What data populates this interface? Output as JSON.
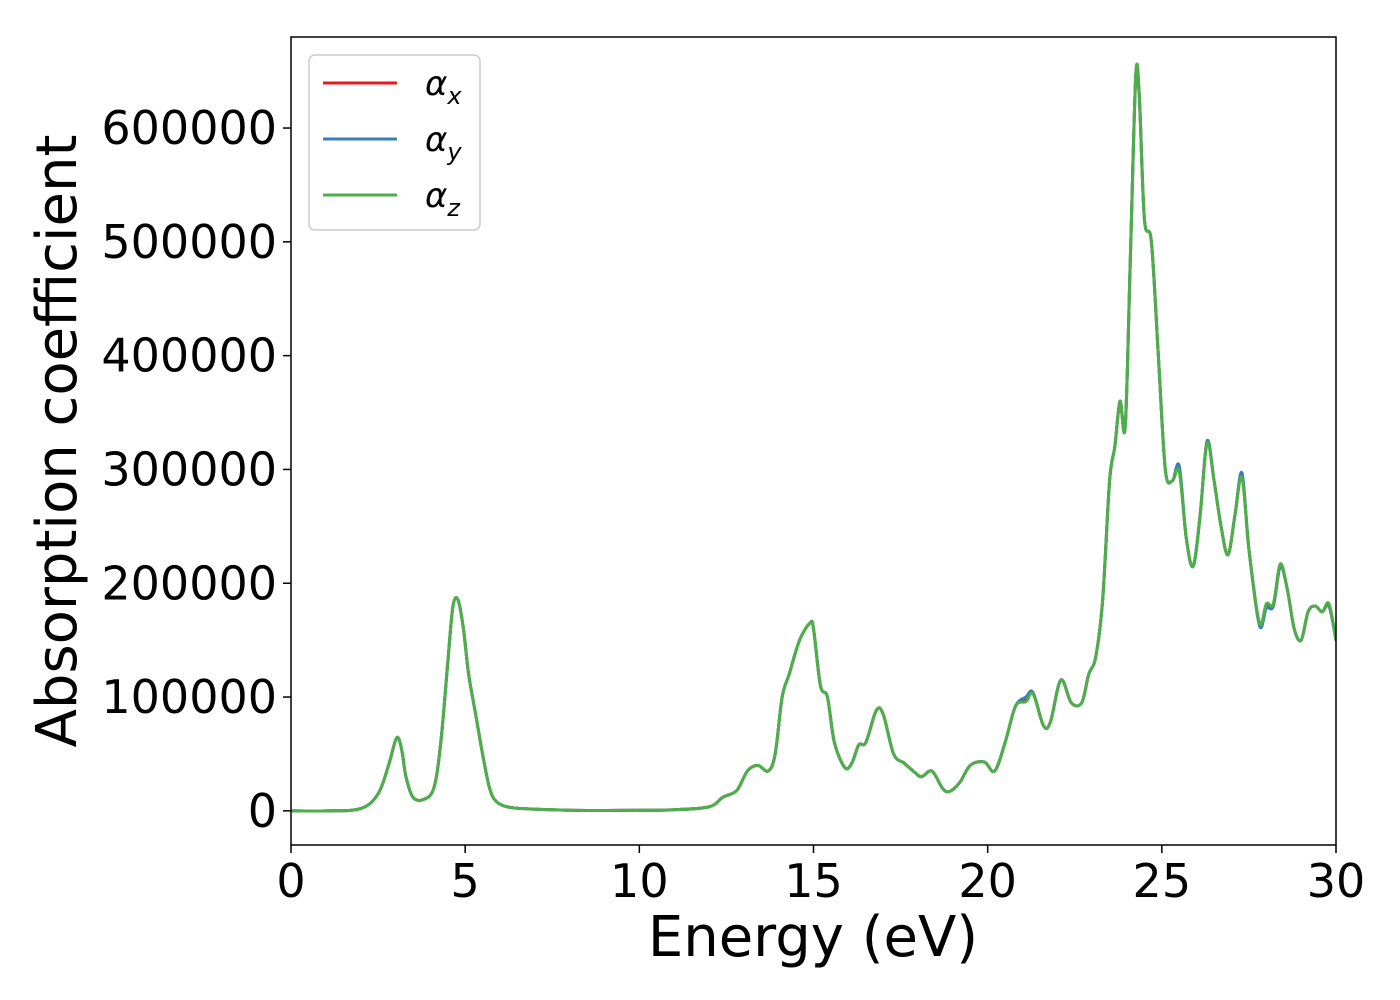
{
  "chart_data": {
    "type": "line",
    "title": "",
    "xlabel": "Energy (eV)",
    "ylabel": "Absorption coefficient",
    "xlim": [
      0,
      30
    ],
    "ylim": [
      -30000,
      680000
    ],
    "xticks": [
      0,
      5,
      10,
      15,
      20,
      25,
      30
    ],
    "xtick_labels": [
      "0",
      "5",
      "10",
      "15",
      "20",
      "25",
      "30"
    ],
    "yticks": [
      0,
      100000,
      200000,
      300000,
      400000,
      500000,
      600000
    ],
    "ytick_labels": [
      "0",
      "100000",
      "200000",
      "300000",
      "400000",
      "500000",
      "600000"
    ],
    "grid": false,
    "legend_position": "top-left",
    "series": [
      {
        "name": "α",
        "sub": "x",
        "color": "#e41a1c",
        "x": [
          0,
          1,
          2,
          2.5,
          2.8,
          3.0,
          3.1,
          3.2,
          3.3,
          3.5,
          3.8,
          4.1,
          4.3,
          4.5,
          4.65,
          4.8,
          4.95,
          5.1,
          5.3,
          5.5,
          5.7,
          5.9,
          6.3,
          7,
          8,
          9,
          10,
          11,
          12,
          12.4,
          12.8,
          13.1,
          13.4,
          13.7,
          13.9,
          14.1,
          14.3,
          14.6,
          14.9,
          15.0,
          15.2,
          15.4,
          15.6,
          15.9,
          16.1,
          16.3,
          16.5,
          16.8,
          17.0,
          17.3,
          17.6,
          17.9,
          18.1,
          18.4,
          18.7,
          18.9,
          19.2,
          19.5,
          19.9,
          20.2,
          20.5,
          20.8,
          21.1,
          21.3,
          21.6,
          21.8,
          22.1,
          22.4,
          22.7,
          22.9,
          23.1,
          23.3,
          23.5,
          23.65,
          23.8,
          23.95,
          24.1,
          24.25,
          24.35,
          24.5,
          24.7,
          24.9,
          25.1,
          25.3,
          25.5,
          25.7,
          25.9,
          26.1,
          26.3,
          26.5,
          26.7,
          26.9,
          27.1,
          27.3,
          27.5,
          27.8,
          28.0,
          28.2,
          28.4,
          28.6,
          28.8,
          29.0,
          29.2,
          29.4,
          29.6,
          29.8,
          30.0
        ],
        "y": [
          0,
          0,
          2000,
          15000,
          40000,
          62000,
          63000,
          50000,
          30000,
          12000,
          10000,
          20000,
          60000,
          130000,
          180000,
          185000,
          160000,
          120000,
          85000,
          50000,
          20000,
          8000,
          3000,
          1500,
          500,
          300,
          500,
          1000,
          3500,
          12000,
          18000,
          35000,
          40000,
          35000,
          50000,
          100000,
          120000,
          150000,
          165000,
          160000,
          110000,
          100000,
          60000,
          38000,
          42000,
          58000,
          60000,
          88000,
          85000,
          50000,
          42000,
          34000,
          30000,
          35000,
          20000,
          17000,
          25000,
          40000,
          43000,
          35000,
          60000,
          92000,
          98000,
          104000,
          75000,
          78000,
          115000,
          95000,
          95000,
          120000,
          135000,
          185000,
          290000,
          320000,
          360000,
          338000,
          490000,
          645000,
          630000,
          520000,
          500000,
          400000,
          300000,
          290000,
          300000,
          240000,
          215000,
          260000,
          325000,
          290000,
          250000,
          225000,
          260000,
          295000,
          230000,
          165000,
          180000,
          180000,
          215000,
          195000,
          160000,
          150000,
          175000,
          180000,
          175000,
          180000,
          150000
        ]
      },
      {
        "name": "α",
        "sub": "y",
        "color": "#377eb8",
        "x": [
          0,
          1,
          2,
          2.5,
          2.8,
          3.0,
          3.1,
          3.2,
          3.3,
          3.5,
          3.8,
          4.1,
          4.3,
          4.5,
          4.65,
          4.8,
          4.95,
          5.1,
          5.3,
          5.5,
          5.7,
          5.9,
          6.3,
          7,
          8,
          9,
          10,
          11,
          12,
          12.4,
          12.8,
          13.1,
          13.4,
          13.7,
          13.9,
          14.1,
          14.3,
          14.6,
          14.9,
          15.0,
          15.2,
          15.4,
          15.6,
          15.9,
          16.1,
          16.3,
          16.5,
          16.8,
          17.0,
          17.3,
          17.6,
          17.9,
          18.1,
          18.4,
          18.7,
          18.9,
          19.2,
          19.5,
          19.9,
          20.2,
          20.5,
          20.8,
          21.1,
          21.3,
          21.6,
          21.8,
          22.1,
          22.4,
          22.7,
          22.9,
          23.1,
          23.3,
          23.5,
          23.65,
          23.8,
          23.95,
          24.1,
          24.25,
          24.35,
          24.5,
          24.7,
          24.9,
          25.1,
          25.3,
          25.5,
          25.7,
          25.9,
          26.1,
          26.3,
          26.5,
          26.7,
          26.9,
          27.1,
          27.3,
          27.5,
          27.8,
          28.0,
          28.2,
          28.4,
          28.6,
          28.8,
          29.0,
          29.2,
          29.4,
          29.6,
          29.8,
          30.0
        ],
        "y": [
          0,
          0,
          2000,
          15000,
          40000,
          62000,
          63000,
          50000,
          30000,
          12000,
          10000,
          20000,
          60000,
          130000,
          180000,
          185000,
          160000,
          120000,
          85000,
          50000,
          20000,
          8000,
          3000,
          1500,
          500,
          300,
          500,
          1000,
          3500,
          12000,
          18000,
          35000,
          40000,
          35000,
          50000,
          100000,
          120000,
          150000,
          165000,
          160000,
          110000,
          100000,
          60000,
          38000,
          42000,
          58000,
          60000,
          88000,
          85000,
          50000,
          42000,
          34000,
          30000,
          35000,
          20000,
          17000,
          25000,
          40000,
          43000,
          35000,
          60000,
          92000,
          100000,
          104000,
          75000,
          78000,
          115000,
          95000,
          95000,
          120000,
          135000,
          185000,
          290000,
          320000,
          360000,
          338000,
          490000,
          645000,
          630000,
          520000,
          500000,
          400000,
          300000,
          290000,
          303000,
          240000,
          215000,
          260000,
          325000,
          290000,
          250000,
          225000,
          260000,
          297000,
          230000,
          163000,
          178000,
          180000,
          215000,
          195000,
          160000,
          150000,
          175000,
          180000,
          175000,
          180000,
          150000
        ]
      },
      {
        "name": "α",
        "sub": "z",
        "color": "#4daf4a",
        "x": [
          0,
          1,
          2,
          2.5,
          2.8,
          3.0,
          3.1,
          3.2,
          3.3,
          3.5,
          3.8,
          4.1,
          4.3,
          4.5,
          4.65,
          4.8,
          4.95,
          5.1,
          5.3,
          5.5,
          5.7,
          5.9,
          6.3,
          7,
          8,
          9,
          10,
          11,
          12,
          12.4,
          12.8,
          13.1,
          13.4,
          13.7,
          13.9,
          14.1,
          14.3,
          14.6,
          14.9,
          15.0,
          15.2,
          15.4,
          15.6,
          15.9,
          16.1,
          16.3,
          16.5,
          16.8,
          17.0,
          17.3,
          17.6,
          17.9,
          18.1,
          18.4,
          18.7,
          18.9,
          19.2,
          19.5,
          19.9,
          20.2,
          20.5,
          20.8,
          21.1,
          21.3,
          21.6,
          21.8,
          22.1,
          22.4,
          22.7,
          22.9,
          23.1,
          23.3,
          23.5,
          23.65,
          23.8,
          23.95,
          24.1,
          24.25,
          24.35,
          24.5,
          24.7,
          24.9,
          25.1,
          25.3,
          25.5,
          25.7,
          25.9,
          26.1,
          26.3,
          26.5,
          26.7,
          26.9,
          27.1,
          27.3,
          27.5,
          27.8,
          28.0,
          28.2,
          28.4,
          28.6,
          28.8,
          29.0,
          29.2,
          29.4,
          29.6,
          29.8,
          30.0
        ],
        "y": [
          0,
          0,
          2000,
          15000,
          40000,
          62000,
          63000,
          50000,
          30000,
          12000,
          10000,
          20000,
          60000,
          130000,
          180000,
          185000,
          160000,
          120000,
          85000,
          50000,
          20000,
          8000,
          3000,
          1500,
          500,
          300,
          500,
          1000,
          3500,
          12000,
          18000,
          35000,
          40000,
          35000,
          50000,
          100000,
          120000,
          150000,
          165000,
          160000,
          110000,
          100000,
          60000,
          38000,
          42000,
          58000,
          60000,
          88000,
          85000,
          50000,
          42000,
          34000,
          30000,
          35000,
          20000,
          17000,
          25000,
          40000,
          43000,
          35000,
          60000,
          92000,
          96000,
          103000,
          75000,
          78000,
          115000,
          95000,
          95000,
          120000,
          135000,
          185000,
          290000,
          320000,
          360000,
          338000,
          490000,
          645000,
          630000,
          520000,
          500000,
          400000,
          300000,
          290000,
          298000,
          240000,
          215000,
          260000,
          323000,
          290000,
          250000,
          225000,
          260000,
          293000,
          230000,
          165000,
          182000,
          182000,
          217000,
          195000,
          160000,
          150000,
          175000,
          180000,
          175000,
          182000,
          150000
        ]
      }
    ]
  }
}
